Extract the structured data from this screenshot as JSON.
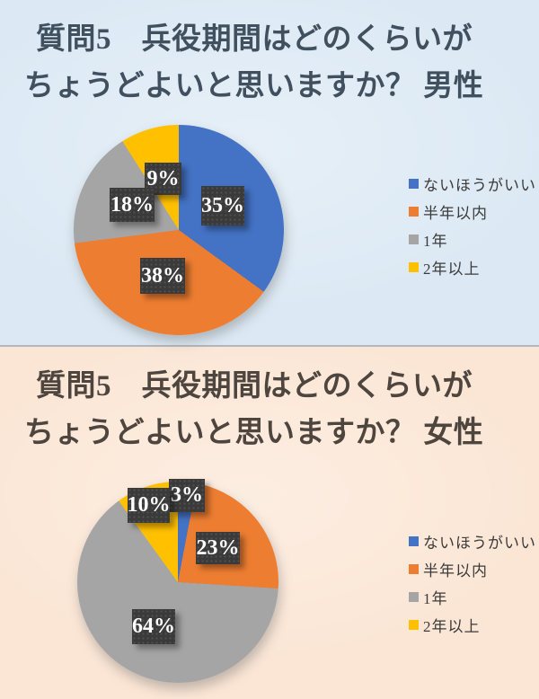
{
  "chart_data": [
    {
      "type": "pie",
      "title": "質問5　兵役期間はどのくらいがちょうどよいと思いますか？ 男性",
      "title_line1": "質問5　兵役期間はどのくらいが",
      "title_line2": "ちょうどよいと思いますか？ 男性",
      "categories": [
        "ないほうがいい",
        "半年以内",
        "1年",
        "2年以上"
      ],
      "values": [
        35,
        38,
        18,
        9
      ],
      "data_labels": [
        "35%",
        "38%",
        "18%",
        "9%"
      ],
      "colors": [
        "#4472c4",
        "#ed7d31",
        "#a5a5a5",
        "#ffc000"
      ],
      "units": "%",
      "start_angle": 0,
      "direction": "clockwise",
      "legend_position": "right",
      "background_color": "#dce9f4",
      "title_color": "#41505f",
      "label_bg": "#3a3a3a",
      "label_text_color": "#ffffff"
    },
    {
      "type": "pie",
      "title": "質問5　兵役期間はどのくらいがちょうどよいと思いますか？ 女性",
      "title_line1": "質問5　兵役期間はどのくらいが",
      "title_line2": "ちょうどよいと思いますか？ 女性",
      "categories": [
        "ないほうがいい",
        "半年以内",
        "1年",
        "2年以上"
      ],
      "values": [
        3,
        23,
        64,
        10
      ],
      "data_labels": [
        "3%",
        "23%",
        "64%",
        "10%"
      ],
      "colors": [
        "#4472c4",
        "#ed7d31",
        "#a5a5a5",
        "#ffc000"
      ],
      "units": "%",
      "start_angle": 0,
      "direction": "clockwise",
      "legend_position": "right",
      "background_color": "#fbe6d5",
      "title_color": "#4d453e",
      "label_bg": "#3a3a3a",
      "label_text_color": "#ffffff"
    }
  ]
}
